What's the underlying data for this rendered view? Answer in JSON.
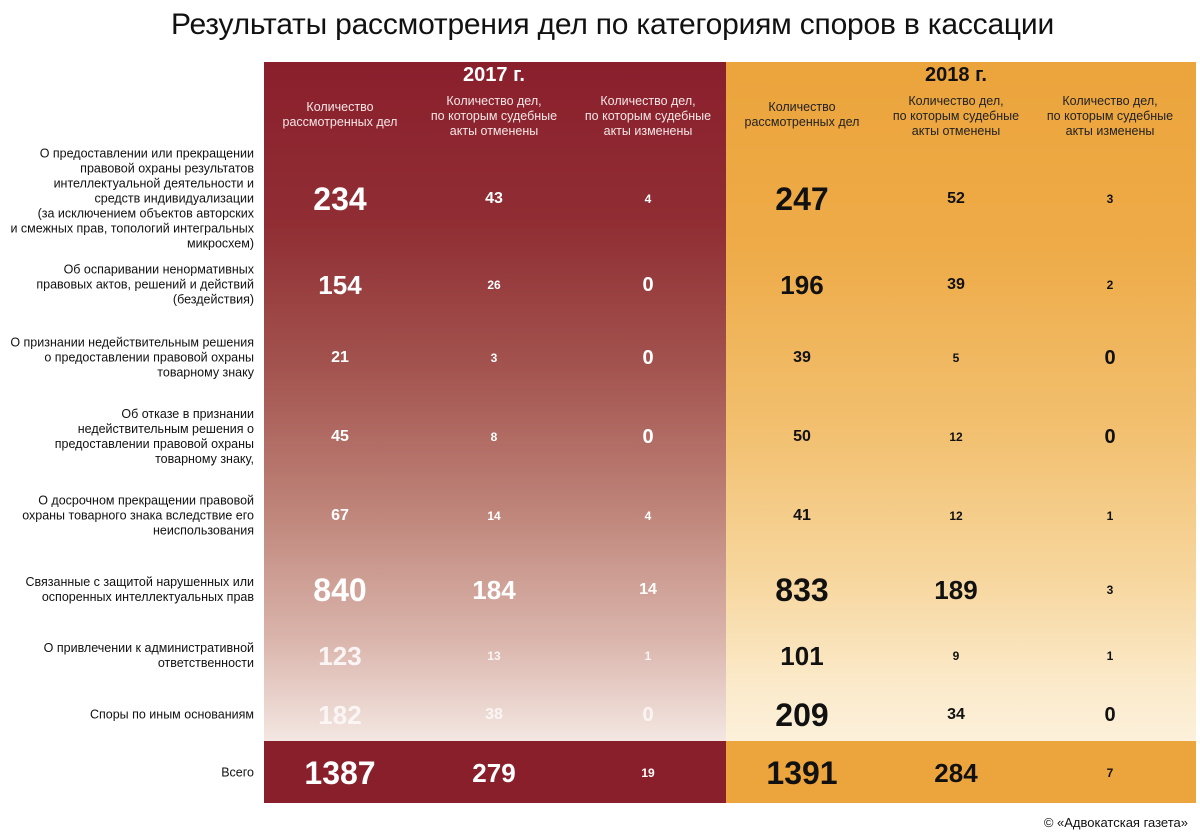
{
  "title": "Результаты рассмотрения дел по категориям споров в кассации",
  "credit": "© «Адвокатская газета»",
  "chart_data": {
    "type": "table",
    "groups": [
      {
        "year": "2017 г.",
        "columns": [
          [
            "Количество",
            "рассмотренных дел"
          ],
          [
            "Количество дел,",
            "по которым судебные",
            "акты отменены"
          ],
          [
            "Количество дел,",
            "по которым судебные",
            "акты изменены"
          ]
        ]
      },
      {
        "year": "2018 г.",
        "columns": [
          [
            "Количество",
            "рассмотренных дел"
          ],
          [
            "Количество дел,",
            "по которым судебные",
            "акты отменены"
          ],
          [
            "Количество дел,",
            "по которым судебные",
            "акты изменены"
          ]
        ]
      }
    ],
    "rows": [
      {
        "label": [
          "О предоставлении или прекращении",
          "правовой охраны результатов",
          "интеллектуальной деятельности и",
          "средств индивидуализации",
          "(за исключением объектов авторских",
          "и смежных прав, топологий интегральных",
          "микросхем)"
        ],
        "values_2017": [
          234,
          43,
          4
        ],
        "values_2018": [
          247,
          52,
          3
        ]
      },
      {
        "label": [
          "Об оспаривании ненормативных",
          "правовых актов, решений и действий",
          "(бездействия)"
        ],
        "values_2017": [
          154,
          26,
          0
        ],
        "values_2018": [
          196,
          39,
          2
        ]
      },
      {
        "label": [
          "О признании недействительным решения",
          "о предоставлении правовой охраны",
          "товарному знаку"
        ],
        "values_2017": [
          21,
          3,
          0
        ],
        "values_2018": [
          39,
          5,
          0
        ]
      },
      {
        "label": [
          "Об отказе в признании",
          "недействительным решения о",
          "предоставлении правовой охраны",
          "товарному знаку,"
        ],
        "values_2017": [
          45,
          8,
          0
        ],
        "values_2018": [
          50,
          12,
          0
        ]
      },
      {
        "label": [
          "О досрочном прекращении правовой",
          "охраны товарного знака вследствие его",
          "неиспользования"
        ],
        "values_2017": [
          67,
          14,
          4
        ],
        "values_2018": [
          41,
          12,
          1
        ]
      },
      {
        "label": [
          "Связанные с защитой нарушенных или",
          "оспоренных интеллектуальных прав"
        ],
        "values_2017": [
          840,
          184,
          14
        ],
        "values_2018": [
          833,
          189,
          3
        ]
      },
      {
        "label": [
          "О привлечении к административной",
          "ответственности"
        ],
        "values_2017": [
          123,
          13,
          1
        ],
        "values_2018": [
          101,
          9,
          1
        ]
      },
      {
        "label": [
          "Споры по иным основаниям"
        ],
        "values_2017": [
          182,
          38,
          0
        ],
        "values_2018": [
          209,
          34,
          0
        ]
      }
    ],
    "total": {
      "label": "Всего",
      "values_2017": [
        1387,
        279,
        19
      ],
      "values_2018": [
        1391,
        284,
        7
      ]
    },
    "colors": {
      "panel_2017": "#8a1f2c",
      "panel_2018": "#eca43c"
    }
  }
}
